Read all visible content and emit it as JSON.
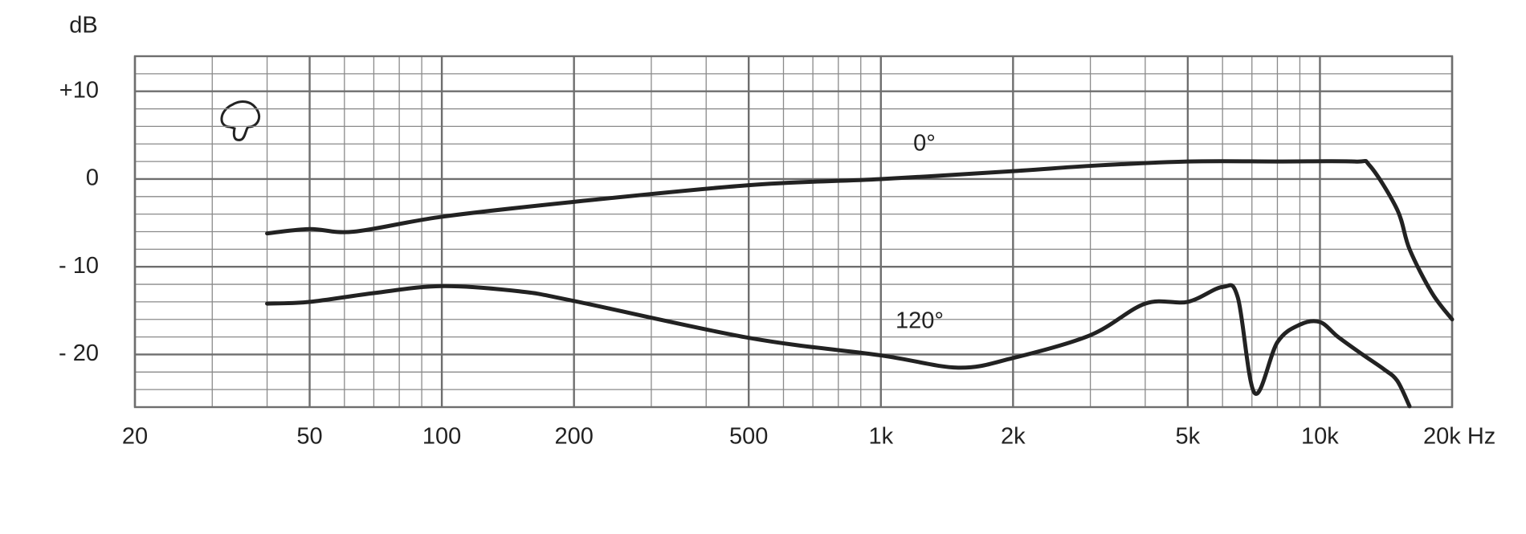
{
  "chart_data": {
    "type": "line",
    "y_label": "dB",
    "log_x": true,
    "grid": true,
    "xlim": [
      20,
      20000
    ],
    "ylim": [
      -26,
      14
    ],
    "xticks": [
      20,
      50,
      100,
      200,
      500,
      {
        "value": 1000,
        "label": "1k"
      },
      {
        "value": 2000,
        "label": "2k"
      },
      {
        "value": 5000,
        "label": "5k"
      },
      {
        "value": 10000,
        "label": "10k"
      },
      {
        "value": 20000,
        "label": "20k Hz"
      }
    ],
    "yticks": [
      {
        "value": 10,
        "label": "+10"
      },
      0,
      {
        "value": -10,
        "label": "- 10"
      },
      {
        "value": -20,
        "label": "- 20"
      }
    ],
    "series": [
      {
        "name": "0°",
        "color": "#222222",
        "x": [
          40,
          50,
          63,
          100,
          200,
          500,
          1000,
          2000,
          3000,
          5000,
          8000,
          12000,
          13000,
          15000,
          16000,
          18000,
          20000
        ],
        "values": [
          -6.2,
          -5.7,
          -6,
          -4.3,
          -2.6,
          -0.7,
          0,
          0.9,
          1.5,
          2,
          2,
          2,
          1.5,
          -3.5,
          -8,
          -13,
          -16
        ]
      },
      {
        "name": "120°",
        "color": "#222222",
        "x": [
          40,
          50,
          70,
          100,
          150,
          200,
          500,
          1000,
          1500,
          2000,
          3000,
          4000,
          5000,
          6000,
          6500,
          7100,
          8000,
          9000,
          10000,
          11000,
          12500,
          14000,
          15000,
          16000
        ],
        "values": [
          -14.2,
          -14,
          -13,
          -12.2,
          -12.8,
          -13.9,
          -18.1,
          -20.1,
          -21.5,
          -20.4,
          -17.8,
          -14.2,
          -14,
          -12.3,
          -13.5,
          -24.4,
          -18.6,
          -16.6,
          -16.3,
          -18,
          -20,
          -21.7,
          -23,
          -25.9
        ]
      }
    ]
  }
}
